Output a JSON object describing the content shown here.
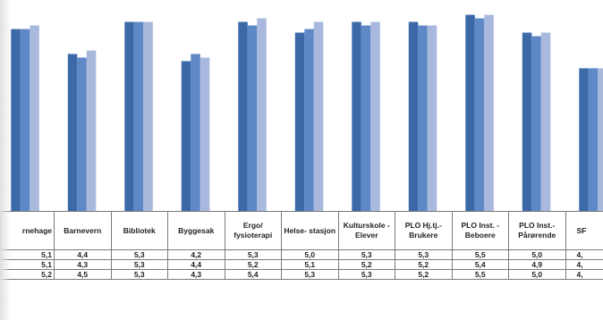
{
  "chart_data": {
    "type": "bar",
    "title": "",
    "xlabel": "",
    "ylabel": "",
    "ylim": [
      0,
      6
    ],
    "categories": [
      "rnehage",
      "Barnevern",
      "Bibliotek",
      "Byggesak",
      "Ergo/ fysioterapi",
      "Helse- stasjon",
      "Kulturskole - Elever",
      "PLO Hj.tj.- Brukere",
      "PLO Inst. - Beboere",
      "PLO Inst.- Pårørende",
      "SF"
    ],
    "series": [
      {
        "values": [
          "5,1",
          "4,4",
          "5,3",
          "4,2",
          "5,3",
          "5,0",
          "5,3",
          "5,3",
          "5,5",
          "5,0",
          "4,"
        ]
      },
      {
        "values": [
          "5,1",
          "4,3",
          "5,3",
          "4,4",
          "5,2",
          "5,1",
          "5,2",
          "5,2",
          "5,4",
          "4,9",
          "4,"
        ]
      },
      {
        "values": [
          "5,2",
          "4,5",
          "5,3",
          "4,3",
          "5,4",
          "5,3",
          "5,3",
          "5,2",
          "5,5",
          "5,0",
          "4,"
        ]
      }
    ],
    "colors": [
      "#3c69a8",
      "#5e88c6",
      "#a9b9dd"
    ],
    "grid": false,
    "legend": "none"
  }
}
